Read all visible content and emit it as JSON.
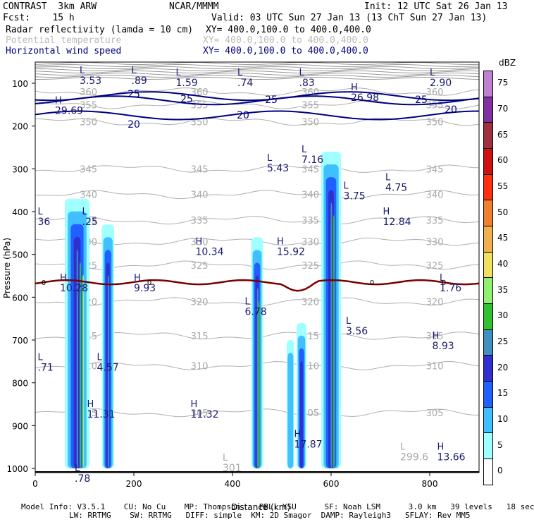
{
  "header": {
    "experiment": "CONTRAST  3km ARW",
    "org": "NCAR/MMMM",
    "init": "Init: 12 UTC Sat 26 Jan 13",
    "fcst": "Fcst:    15 h",
    "valid": "Valid: 03 UTC Sun 27 Jan 13 (13 ChT Sun 27 Jan 13)",
    "fields": [
      {
        "name": "Radar reflectivity (lamda = 10 cm)",
        "xy": "XY= 400.0,100.0 to 400.0,400.0",
        "color": "#000000"
      },
      {
        "name": "Potential temperature",
        "xy": "XY= 400.0,100.0 to 400.0,400.0",
        "color": "#bbbbbb"
      },
      {
        "name": "Horizontal wind speed",
        "xy": "XY= 400.0,100.0 to 400.0,400.0",
        "color": "#000080"
      }
    ]
  },
  "footer": {
    "line1": "Model Info: V3.5.1    CU: No Cu    MP: Thompson    PBL: YSU      SF: Noah LSM      3.0 km   39 levels   18 sec",
    "line2": "LW: RRTMG    SW: RRTMG   DIFF: simple  KM: 2D Smagor  DAMP: Rayleigh3   SFLAY: Rev MM5"
  },
  "chart_data": {
    "type": "contour",
    "xlabel": "Distance (km)",
    "ylabel": "Pressure (hPa)",
    "xlim": [
      0,
      900
    ],
    "ylim": [
      1000,
      60
    ],
    "x_ticks": [
      0,
      200,
      400,
      600,
      800
    ],
    "y_ticks": [
      100,
      200,
      300,
      400,
      500,
      600,
      700,
      800,
      900,
      1000
    ],
    "colorbar": {
      "unit": "dBZ",
      "levels": [
        0,
        5,
        10,
        15,
        20,
        25,
        30,
        35,
        40,
        45,
        50,
        55,
        60,
        65,
        70,
        75
      ],
      "colors": [
        "#ffffff",
        "#a0ffff",
        "#40c0ff",
        "#2060ff",
        "#3030d0",
        "#4090c0",
        "#30c030",
        "#90f070",
        "#f0e060",
        "#f0b050",
        "#f08030",
        "#ff3010",
        "#d01010",
        "#a03040",
        "#8030a0",
        "#c080d0"
      ]
    },
    "theta_contours": [
      {
        "label": "345",
        "p": 300
      },
      {
        "label": "340",
        "p": 360
      },
      {
        "label": "335",
        "p": 420
      },
      {
        "label": "330",
        "p": 470
      },
      {
        "label": "325",
        "p": 525
      },
      {
        "label": "320",
        "p": 610
      },
      {
        "label": "315",
        "p": 690
      },
      {
        "label": "310",
        "p": 760
      },
      {
        "label": "305",
        "p": 870
      },
      {
        "label": "350",
        "p": 190
      },
      {
        "label": "355",
        "p": 150
      },
      {
        "label": "360",
        "p": 120
      }
    ],
    "wind_labels": [
      "25",
      "25",
      "25",
      "25",
      "20",
      "20",
      "20"
    ],
    "zero_line_label": "0",
    "extrema": [
      {
        "kind": "L",
        "value": "3.53",
        "x": 90,
        "p": 80,
        "color": "navy"
      },
      {
        "kind": "L",
        "value": ".89",
        "x": 195,
        "p": 80,
        "color": "navy"
      },
      {
        "kind": "L",
        "value": "1.59",
        "x": 285,
        "p": 85,
        "color": "navy"
      },
      {
        "kind": "L",
        "value": ".74",
        "x": 410,
        "p": 85,
        "color": "navy"
      },
      {
        "kind": "L",
        "value": ".83",
        "x": 535,
        "p": 85,
        "color": "navy"
      },
      {
        "kind": "L",
        "value": "2.90",
        "x": 800,
        "p": 85,
        "color": "navy"
      },
      {
        "kind": "H",
        "value": "29.69",
        "x": 40,
        "p": 150,
        "color": "navy"
      },
      {
        "kind": "H",
        "value": "26.98",
        "x": 640,
        "p": 120,
        "color": "navy"
      },
      {
        "kind": "L",
        "value": "5.43",
        "x": 470,
        "p": 285,
        "color": "navy"
      },
      {
        "kind": "L",
        "value": "7.16",
        "x": 540,
        "p": 265,
        "color": "navy"
      },
      {
        "kind": "L",
        "value": "3.75",
        "x": 625,
        "p": 350,
        "color": "navy"
      },
      {
        "kind": "L",
        "value": "4.75",
        "x": 710,
        "p": 330,
        "color": "navy"
      },
      {
        "kind": "L",
        "value": "36",
        "x": 5,
        "p": 410,
        "color": "navy"
      },
      {
        "kind": "L",
        "value": ".25",
        "x": 95,
        "p": 410,
        "color": "navy"
      },
      {
        "kind": "H",
        "value": "12.84",
        "x": 705,
        "p": 410,
        "color": "navy"
      },
      {
        "kind": "H",
        "value": "10.34",
        "x": 325,
        "p": 480,
        "color": "navy"
      },
      {
        "kind": "H",
        "value": "15.92",
        "x": 490,
        "p": 480,
        "color": "navy"
      },
      {
        "kind": "H",
        "value": "10.28",
        "x": 50,
        "p": 565,
        "color": "navy"
      },
      {
        "kind": "H",
        "value": "9.93",
        "x": 200,
        "p": 565,
        "color": "navy"
      },
      {
        "kind": "L",
        "value": "1.76",
        "x": 820,
        "p": 565,
        "color": "navy"
      },
      {
        "kind": "L",
        "value": "6.78",
        "x": 425,
        "p": 620,
        "color": "navy"
      },
      {
        "kind": "L",
        "value": "3.56",
        "x": 630,
        "p": 665,
        "color": "navy"
      },
      {
        "kind": "H",
        "value": "8.93",
        "x": 805,
        "p": 700,
        "color": "navy"
      },
      {
        "kind": "L",
        "value": "4.57",
        "x": 125,
        "p": 750,
        "color": "navy"
      },
      {
        "kind": "L",
        "value": ".71",
        "x": 5,
        "p": 750,
        "color": "navy"
      },
      {
        "kind": "H",
        "value": "11.31",
        "x": 105,
        "p": 860,
        "color": "navy"
      },
      {
        "kind": "H",
        "value": "11.32",
        "x": 315,
        "p": 860,
        "color": "navy"
      },
      {
        "kind": "H",
        "value": "17.87",
        "x": 525,
        "p": 930,
        "color": "navy"
      },
      {
        "kind": "H",
        "value": "13.66",
        "x": 815,
        "p": 960,
        "color": "navy"
      },
      {
        "kind": "L",
        "value": "299.6",
        "x": 740,
        "p": 960,
        "color": "grey"
      },
      {
        "kind": "L",
        "value": "301",
        "x": 380,
        "p": 985,
        "color": "grey"
      },
      {
        "kind": "L",
        "value": ".78",
        "x": 80,
        "p": 1010,
        "color": "navy"
      }
    ],
    "convective_cells": [
      {
        "x0": 60,
        "x1": 110,
        "ptop": 370,
        "max_dbz": 35
      },
      {
        "x0": 135,
        "x1": 160,
        "ptop": 430,
        "max_dbz": 25
      },
      {
        "x0": 438,
        "x1": 462,
        "ptop": 460,
        "max_dbz": 30
      },
      {
        "x0": 510,
        "x1": 525,
        "ptop": 700,
        "max_dbz": 10
      },
      {
        "x0": 530,
        "x1": 550,
        "ptop": 660,
        "max_dbz": 20
      },
      {
        "x0": 580,
        "x1": 620,
        "ptop": 260,
        "max_dbz": 30
      }
    ]
  }
}
